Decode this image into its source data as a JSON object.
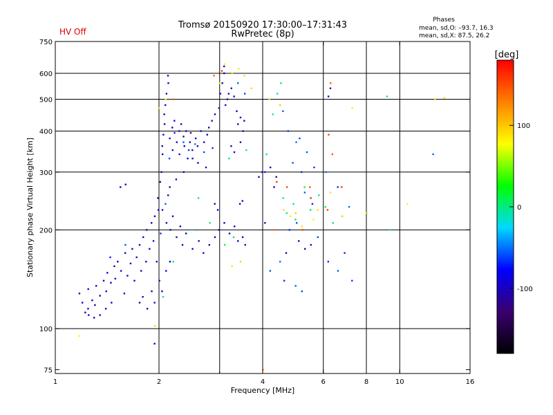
{
  "header": {
    "status": "HV Off",
    "title_line1": "Tromsø 20150920 17:30:00–17:31:43",
    "title_line2": "RwPretec (8p)",
    "phases_title": "Phases",
    "phases_o": "mean, sd,O: –93.7, 16.3",
    "phases_x": "mean, sd,X:  87.5, 26.2"
  },
  "colors": {
    "status_red": "#dd0000",
    "grid": "#000000",
    "frame": "#000000"
  },
  "chart_data": {
    "type": "scatter",
    "x_scale": "log",
    "y_scale": "log",
    "xlabel": "Frequency [MHz]",
    "ylabel": "Stationary phase Virtual Height [km]",
    "xlim": [
      1,
      16
    ],
    "ylim": [
      73,
      750
    ],
    "x_ticks": [
      1,
      2,
      4,
      6,
      8,
      10,
      16
    ],
    "x_tick_labels": [
      "1",
      "2",
      "4",
      "6",
      "8",
      "10",
      "16"
    ],
    "x_minor_ticks": [
      3
    ],
    "y_ticks": [
      75,
      100,
      200,
      300,
      400,
      500,
      600,
      750
    ],
    "y_tick_labels": [
      "75",
      "100",
      "200",
      "300",
      "400",
      "500",
      "600",
      "750"
    ],
    "x_grid": [
      2,
      3,
      4,
      6,
      8,
      10
    ],
    "y_grid": [
      100,
      200,
      300,
      400,
      500,
      600
    ],
    "colorbar": {
      "label": "[deg]",
      "range": [
        -180,
        180
      ],
      "tick_values": [
        100,
        0,
        -100
      ],
      "tick_labels": [
        "100",
        "0",
        "-100"
      ],
      "colormap": [
        "#000000",
        "#3a0070",
        "#0000ff",
        "#00d8ff",
        "#00ff00",
        "#ffff00",
        "#ff8000",
        "#ff0000"
      ]
    },
    "series": [
      {
        "phase_deg": -100,
        "points": [
          [
            1.18,
            128
          ],
          [
            1.2,
            120
          ],
          [
            1.22,
            112
          ],
          [
            1.24,
            115
          ],
          [
            1.25,
            132
          ],
          [
            1.28,
            122
          ],
          [
            1.3,
            118
          ],
          [
            1.32,
            135
          ],
          [
            1.35,
            126
          ],
          [
            1.38,
            140
          ],
          [
            1.4,
            130
          ],
          [
            1.42,
            148
          ],
          [
            1.45,
            138
          ],
          [
            1.48,
            155
          ],
          [
            1.5,
            142
          ],
          [
            1.52,
            160
          ],
          [
            1.55,
            150
          ],
          [
            1.58,
            128
          ],
          [
            1.6,
            170
          ],
          [
            1.62,
            145
          ],
          [
            1.65,
            158
          ],
          [
            1.68,
            175
          ],
          [
            1.7,
            140
          ],
          [
            1.72,
            165
          ],
          [
            1.75,
            180
          ],
          [
            1.78,
            150
          ],
          [
            1.8,
            190
          ],
          [
            1.83,
            160
          ],
          [
            1.85,
            200
          ],
          [
            1.88,
            175
          ],
          [
            1.9,
            210
          ],
          [
            1.92,
            185
          ],
          [
            1.95,
            220
          ],
          [
            1.97,
            160
          ],
          [
            1.98,
            250
          ],
          [
            2.0,
            230
          ],
          [
            2.02,
            280
          ],
          [
            2.03,
            300
          ],
          [
            2.04,
            340
          ],
          [
            2.05,
            360
          ],
          [
            2.06,
            390
          ],
          [
            2.07,
            420
          ],
          [
            2.08,
            450
          ],
          [
            2.09,
            480
          ],
          [
            2.1,
            520
          ],
          [
            2.12,
            560
          ],
          [
            2.13,
            590
          ],
          [
            2.15,
            380
          ],
          [
            2.18,
            410
          ],
          [
            2.2,
            350
          ],
          [
            2.22,
            430
          ],
          [
            2.25,
            370
          ],
          [
            2.28,
            400
          ],
          [
            2.3,
            340
          ],
          [
            2.32,
            420
          ],
          [
            2.35,
            385
          ],
          [
            2.38,
            360
          ],
          [
            2.4,
            400
          ],
          [
            2.42,
            330
          ],
          [
            2.45,
            370
          ],
          [
            2.48,
            395
          ],
          [
            2.5,
            350
          ],
          [
            2.55,
            380
          ],
          [
            2.6,
            360
          ],
          [
            2.65,
            400
          ],
          [
            2.7,
            370
          ],
          [
            2.75,
            390
          ],
          [
            2.8,
            410
          ],
          [
            2.85,
            430
          ],
          [
            2.9,
            450
          ],
          [
            3.0,
            470
          ],
          [
            3.02,
            520
          ],
          [
            3.05,
            560
          ],
          [
            3.08,
            600
          ],
          [
            3.1,
            630
          ],
          [
            3.12,
            480
          ],
          [
            3.15,
            500
          ],
          [
            3.2,
            520
          ],
          [
            3.25,
            540
          ],
          [
            3.3,
            510
          ],
          [
            3.35,
            460
          ],
          [
            3.4,
            420
          ],
          [
            3.45,
            440
          ],
          [
            3.5,
            400
          ],
          [
            3.55,
            430
          ],
          [
            2.05,
            230
          ],
          [
            2.1,
            210
          ],
          [
            2.15,
            200
          ],
          [
            2.2,
            220
          ],
          [
            2.25,
            190
          ],
          [
            2.3,
            205
          ],
          [
            2.35,
            180
          ],
          [
            2.4,
            195
          ],
          [
            2.5,
            175
          ],
          [
            2.6,
            185
          ],
          [
            2.7,
            170
          ],
          [
            2.8,
            180
          ],
          [
            2.9,
            190
          ],
          [
            3.0,
            200
          ],
          [
            3.1,
            210
          ],
          [
            3.2,
            195
          ],
          [
            3.3,
            205
          ],
          [
            3.4,
            185
          ],
          [
            3.5,
            190
          ],
          [
            3.55,
            180
          ],
          [
            3.45,
            240
          ],
          [
            3.5,
            245
          ],
          [
            2.9,
            240
          ],
          [
            2.95,
            230
          ],
          [
            1.55,
            270
          ],
          [
            1.6,
            275
          ],
          [
            2.0,
            140
          ],
          [
            2.05,
            130
          ],
          [
            2.1,
            150
          ],
          [
            2.15,
            160
          ],
          [
            1.75,
            120
          ],
          [
            1.8,
            125
          ],
          [
            1.85,
            115
          ],
          [
            1.9,
            130
          ],
          [
            1.95,
            120
          ],
          [
            1.35,
            110
          ],
          [
            1.4,
            115
          ],
          [
            1.45,
            120
          ],
          [
            1.3,
            108
          ],
          [
            1.25,
            110
          ],
          [
            4.05,
            210
          ],
          [
            4.7,
            170
          ],
          [
            5.1,
            185
          ],
          [
            5.3,
            175
          ],
          [
            5.5,
            180
          ],
          [
            3.25,
            360
          ],
          [
            3.45,
            370
          ],
          [
            3.3,
            345
          ],
          [
            2.75,
            310
          ],
          [
            2.6,
            320
          ],
          [
            2.5,
            330
          ],
          [
            2.35,
            300
          ],
          [
            2.25,
            285
          ],
          [
            2.15,
            270
          ],
          [
            2.12,
            255
          ],
          [
            1.95,
            90
          ],
          [
            6.3,
            540
          ],
          [
            6.2,
            510
          ],
          [
            4.3,
            270
          ],
          [
            4.0,
            300
          ],
          [
            3.9,
            290
          ],
          [
            4.2,
            310
          ],
          [
            4.4,
            290
          ]
        ]
      },
      {
        "phase_deg": -60,
        "points": [
          [
            1.45,
            165
          ],
          [
            1.6,
            180
          ],
          [
            2.02,
            195
          ],
          [
            2.08,
            240
          ],
          [
            2.15,
            330
          ],
          [
            2.22,
            395
          ],
          [
            2.35,
            370
          ],
          [
            2.45,
            350
          ],
          [
            2.55,
            365
          ],
          [
            2.7,
            345
          ],
          [
            2.85,
            355
          ],
          [
            3.4,
            560
          ],
          [
            3.55,
            520
          ],
          [
            4.05,
            300
          ],
          [
            4.6,
            460
          ],
          [
            4.75,
            400
          ],
          [
            5.0,
            370
          ],
          [
            5.1,
            380
          ],
          [
            5.2,
            300
          ],
          [
            5.3,
            260
          ],
          [
            5.5,
            250
          ],
          [
            5.6,
            240
          ],
          [
            4.9,
            320
          ],
          [
            6.6,
            270
          ],
          [
            7.1,
            235
          ],
          [
            5.8,
            190
          ],
          [
            6.2,
            160
          ],
          [
            6.6,
            150
          ],
          [
            7.3,
            140
          ],
          [
            4.5,
            160
          ],
          [
            4.2,
            150
          ],
          [
            4.6,
            140
          ],
          [
            5.0,
            135
          ],
          [
            5.2,
            130
          ],
          [
            6.9,
            170
          ],
          [
            5.4,
            345
          ],
          [
            5.65,
            310
          ],
          [
            6.1,
            300
          ],
          [
            5.0,
            210
          ],
          [
            4.8,
            200
          ],
          [
            12.5,
            340
          ]
        ]
      },
      {
        "phase_deg": 0,
        "points": [
          [
            3.6,
            350
          ],
          [
            3.2,
            330
          ],
          [
            4.1,
            340
          ],
          [
            4.5,
            560
          ],
          [
            4.6,
            250
          ],
          [
            4.7,
            225
          ],
          [
            4.9,
            240
          ],
          [
            5.0,
            215
          ],
          [
            5.3,
            270
          ],
          [
            5.5,
            230
          ],
          [
            5.8,
            255
          ],
          [
            6.1,
            235
          ],
          [
            6.4,
            210
          ],
          [
            4.4,
            520
          ],
          [
            4.3,
            450
          ],
          [
            3.3,
            190
          ],
          [
            3.1,
            180
          ],
          [
            2.8,
            210
          ],
          [
            2.5,
            200
          ],
          [
            2.2,
            160
          ],
          [
            2.05,
            125
          ],
          [
            9.4,
            200
          ],
          [
            9.2,
            510
          ],
          [
            2.6,
            250
          ]
        ]
      },
      {
        "phase_deg": 90,
        "points": [
          [
            1.18,
            95
          ],
          [
            1.95,
            102
          ],
          [
            3.4,
            620
          ],
          [
            3.25,
            600
          ],
          [
            3.55,
            590
          ],
          [
            3.1,
            640
          ],
          [
            3.7,
            540
          ],
          [
            4.2,
            500
          ],
          [
            4.5,
            480
          ],
          [
            4.6,
            230
          ],
          [
            4.8,
            220
          ],
          [
            5.0,
            225
          ],
          [
            5.2,
            205
          ],
          [
            5.6,
            215
          ],
          [
            5.8,
            230
          ],
          [
            6.3,
            260
          ],
          [
            6.8,
            220
          ],
          [
            8.0,
            225
          ],
          [
            7.3,
            470
          ],
          [
            3.45,
            160
          ],
          [
            3.25,
            155
          ],
          [
            2.1,
            500
          ],
          [
            2.0,
            470
          ],
          [
            3.0,
            560
          ],
          [
            12.6,
            500
          ],
          [
            13.5,
            505
          ],
          [
            10.5,
            240
          ]
        ]
      },
      {
        "phase_deg": 150,
        "points": [
          [
            2.9,
            590
          ],
          [
            3.05,
            610
          ],
          [
            4.0,
            75
          ],
          [
            5.2,
            200
          ],
          [
            5.5,
            270
          ],
          [
            6.3,
            560
          ],
          [
            6.2,
            390
          ],
          [
            6.4,
            340
          ],
          [
            4.4,
            280
          ],
          [
            4.7,
            270
          ],
          [
            5.5,
            250
          ],
          [
            6.8,
            270
          ],
          [
            2.2,
            500
          ],
          [
            4.3,
            200
          ],
          [
            6.2,
            230
          ]
        ]
      }
    ]
  }
}
